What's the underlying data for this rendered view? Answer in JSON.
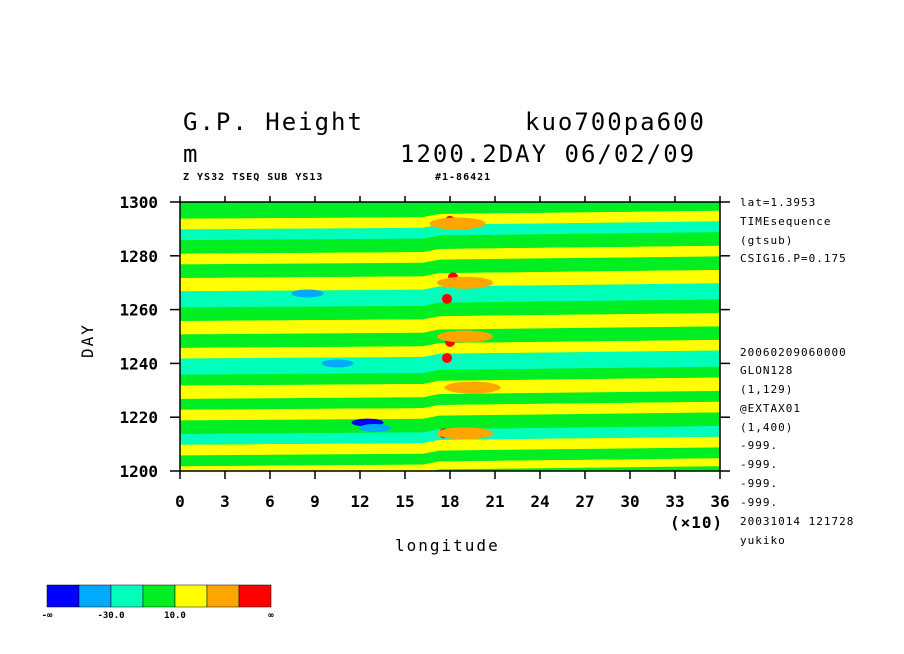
{
  "header": {
    "title_left": "G.P. Height",
    "title_right": "kuo700pa600",
    "units": "m",
    "time_label": "1200.2DAY 06/02/09",
    "subtitle_left": "Z YS32 TSEQ SUB YS13",
    "subtitle_right": "#1-86421"
  },
  "side_info": [
    "lat=1.3953",
    "TIMEsequence",
    "(gtsub)",
    "CSIG16.P=0.175",
    "20060209060000",
    "GLON128",
    "(1,129)",
    "@EXTAX01",
    "(1,400)",
    "-999.",
    "-999.",
    "-999.",
    "-999.",
    "20031014 121728",
    "yukiko"
  ],
  "colorbar": {
    "labels": [
      "-∞",
      "-30.0",
      "10.0",
      "∞"
    ],
    "colors": [
      "#0000ff",
      "#00aaff",
      "#00ffbb",
      "#00ee22",
      "#ffff00",
      "#ffa500",
      "#ff0000"
    ]
  },
  "chart_data": {
    "type": "heatmap",
    "title": "G.P. Height",
    "xlabel": "longitude",
    "ylabel": "DAY",
    "x_multiplier_label": "(×10)",
    "xlim": [
      0,
      36
    ],
    "ylim": [
      1200,
      1300
    ],
    "x_ticks": [
      0,
      3,
      6,
      9,
      12,
      15,
      18,
      21,
      24,
      27,
      30,
      33,
      36
    ],
    "x_tick_labels": [
      "0",
      "3",
      "6",
      "9",
      "12",
      "15",
      "18",
      "21",
      "24",
      "27",
      "30",
      "33",
      "36"
    ],
    "y_ticks": [
      1200,
      1220,
      1240,
      1260,
      1280,
      1300
    ],
    "y_tick_labels": [
      "1200",
      "1220",
      "1240",
      "1260",
      "1280",
      "1300"
    ],
    "levels": [
      "-inf",
      "-50",
      "-30",
      "-10",
      "10",
      "30",
      "50",
      "inf"
    ],
    "bands": [
      {
        "day_from": 1200,
        "day_to": 1203,
        "class": 4
      },
      {
        "day_from": 1203,
        "day_to": 1207,
        "class": 3
      },
      {
        "day_from": 1207,
        "day_to": 1211,
        "class": 4
      },
      {
        "day_from": 1211,
        "day_to": 1215,
        "class": 2
      },
      {
        "day_from": 1215,
        "day_to": 1220,
        "class": 3
      },
      {
        "day_from": 1220,
        "day_to": 1224,
        "class": 4
      },
      {
        "day_from": 1224,
        "day_to": 1228,
        "class": 3
      },
      {
        "day_from": 1228,
        "day_to": 1233,
        "class": 4
      },
      {
        "day_from": 1233,
        "day_to": 1237,
        "class": 3
      },
      {
        "day_from": 1237,
        "day_to": 1243,
        "class": 2
      },
      {
        "day_from": 1243,
        "day_to": 1247,
        "class": 4
      },
      {
        "day_from": 1247,
        "day_to": 1252,
        "class": 3
      },
      {
        "day_from": 1252,
        "day_to": 1257,
        "class": 4
      },
      {
        "day_from": 1257,
        "day_to": 1262,
        "class": 3
      },
      {
        "day_from": 1262,
        "day_to": 1268,
        "class": 2
      },
      {
        "day_from": 1268,
        "day_to": 1273,
        "class": 4
      },
      {
        "day_from": 1273,
        "day_to": 1278,
        "class": 3
      },
      {
        "day_from": 1278,
        "day_to": 1282,
        "class": 4
      },
      {
        "day_from": 1282,
        "day_to": 1287,
        "class": 3
      },
      {
        "day_from": 1287,
        "day_to": 1291,
        "class": 2
      },
      {
        "day_from": 1291,
        "day_to": 1295,
        "class": 4
      },
      {
        "day_from": 1295,
        "day_to": 1300,
        "class": 3
      }
    ],
    "features": [
      {
        "lon": 12.5,
        "day": 1218,
        "class": 0
      },
      {
        "lon": 8.5,
        "day": 1266,
        "class": 1
      },
      {
        "lon": 10.5,
        "day": 1240,
        "class": 1
      },
      {
        "lon": 13,
        "day": 1216,
        "class": 1
      },
      {
        "lon": 18,
        "day": 1293,
        "class": 6
      },
      {
        "lon": 18.2,
        "day": 1272,
        "class": 6
      },
      {
        "lon": 17.8,
        "day": 1264,
        "class": 6
      },
      {
        "lon": 18,
        "day": 1248,
        "class": 6
      },
      {
        "lon": 17.8,
        "day": 1242,
        "class": 6
      },
      {
        "lon": 17.6,
        "day": 1214,
        "class": 6
      },
      {
        "lon": 18.5,
        "day": 1292,
        "class": 5
      },
      {
        "lon": 19,
        "day": 1270,
        "class": 5
      },
      {
        "lon": 19,
        "day": 1250,
        "class": 5
      },
      {
        "lon": 19.5,
        "day": 1231,
        "class": 5
      },
      {
        "lon": 19,
        "day": 1214,
        "class": 5
      }
    ]
  }
}
